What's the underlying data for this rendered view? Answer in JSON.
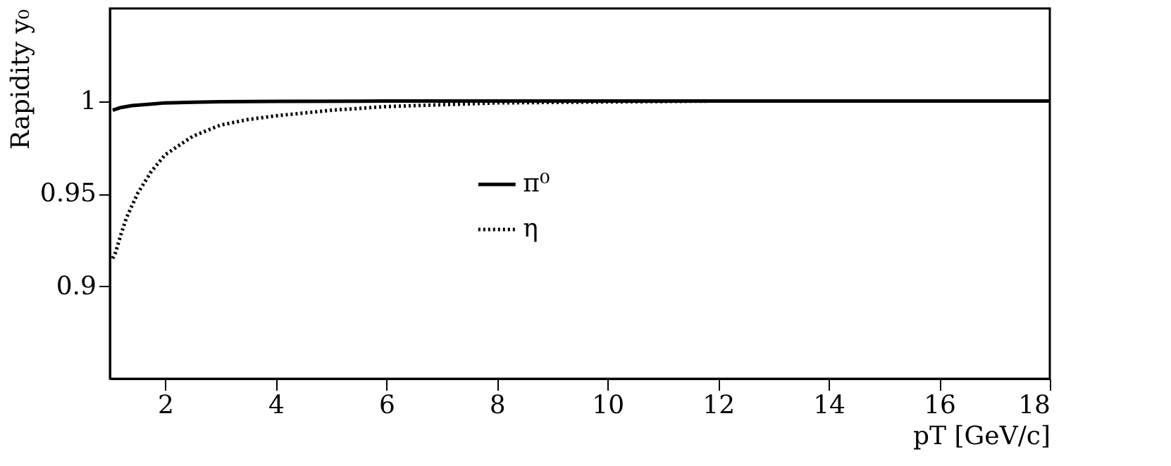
{
  "chart_data": {
    "type": "line",
    "xlabel": "pT [GeV/c]",
    "ylabel": "Rapidity y₀",
    "xlim": [
      1,
      18
    ],
    "ylim": [
      0.85,
      1.05
    ],
    "xticks": [
      2,
      4,
      6,
      8,
      10,
      12,
      14,
      16,
      18
    ],
    "yticks": [
      0.9,
      0.95,
      1
    ],
    "grid": false,
    "legend": "center",
    "marker": "none",
    "series": [
      {
        "name": "π⁰",
        "color": "#000000",
        "line_style": "solid",
        "x": [
          1.05,
          1.2,
          1.4,
          1.6,
          1.8,
          2,
          2.5,
          3,
          4,
          6,
          10,
          14,
          18
        ],
        "values": [
          0.995,
          0.9965,
          0.9975,
          0.998,
          0.9985,
          0.999,
          0.9993,
          0.9996,
          0.9998,
          1,
          1,
          1,
          1
        ]
      },
      {
        "name": "η",
        "color": "#000000",
        "line_style": "dotted",
        "x": [
          1.05,
          1.1,
          1.2,
          1.3,
          1.5,
          1.75,
          2,
          2.5,
          3,
          3.5,
          4,
          5,
          6,
          7,
          8,
          10,
          12,
          14,
          18
        ],
        "values": [
          0.915,
          0.918,
          0.928,
          0.937,
          0.95,
          0.962,
          0.971,
          0.981,
          0.987,
          0.99,
          0.992,
          0.995,
          0.997,
          0.998,
          0.999,
          0.9995,
          1,
          1,
          1
        ]
      }
    ]
  }
}
